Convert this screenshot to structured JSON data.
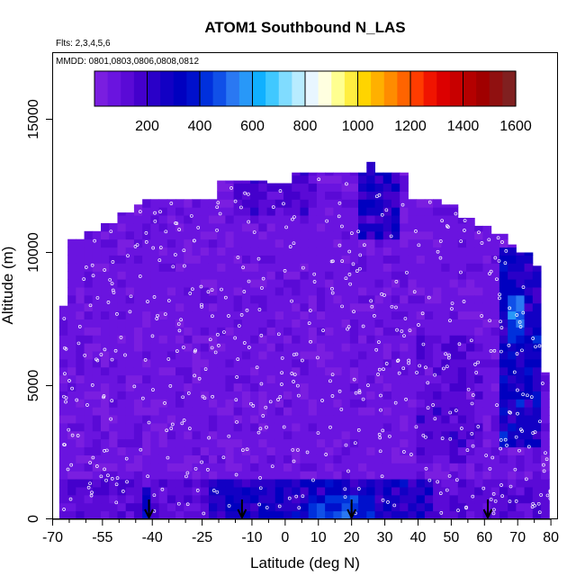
{
  "chart_data": {
    "type": "heatmap",
    "title": "ATOM1 Southbound N_LAS",
    "subtitle_flights": "Flts: 2,3,4,5,6",
    "subtitle_dates": "MMDD: 0801,0803,0806,0808,0812",
    "xlabel": "Latitude (deg N)",
    "ylabel": "Altitude (m)",
    "xlim": [
      -70,
      82
    ],
    "ylim": [
      0,
      17500
    ],
    "x_tick_labels": [
      "-70",
      "-55",
      "-40",
      "-25",
      "-10",
      "0",
      "10",
      "20",
      "30",
      "40",
      "50",
      "60",
      "70",
      "80"
    ],
    "x_tick_values": [
      -70,
      -55,
      -40,
      -25,
      -10,
      0,
      10,
      20,
      30,
      40,
      50,
      60,
      70,
      80
    ],
    "x_minor_ticks": [
      -65,
      -60,
      -50,
      -45,
      -35,
      -30,
      -20,
      -15,
      -5,
      5,
      15,
      25,
      35,
      45,
      55,
      65,
      75
    ],
    "y_tick_labels": [
      "0",
      "5000",
      "10000",
      "15000"
    ],
    "y_tick_values": [
      0,
      5000,
      10000,
      15000
    ],
    "colorbar": {
      "range": [
        0,
        1600
      ],
      "tick_labels": [
        "200",
        "400",
        "600",
        "800",
        "1000",
        "1200",
        "1400",
        "1600"
      ],
      "tick_values": [
        200,
        400,
        600,
        800,
        1000,
        1200,
        1400,
        1600
      ],
      "colors": [
        "#7a1ee0",
        "#6a14df",
        "#5a0ad6",
        "#4400cc",
        "#2a00c8",
        "#1200c4",
        "#0000c0",
        "#0010cc",
        "#0030dc",
        "#1050e8",
        "#2a78f2",
        "#2898f8",
        "#10b0ff",
        "#40c8ff",
        "#80dcff",
        "#b8ecff",
        "#e8f6ff",
        "#ffffe0",
        "#ffff90",
        "#ffee40",
        "#ffd400",
        "#ffb000",
        "#ff8c00",
        "#ff6400",
        "#ff3c00",
        "#f01400",
        "#dc0000",
        "#c80000",
        "#b40000",
        "#a00000",
        "#901010",
        "#802020"
      ]
    },
    "profile_markers_latitude": [
      -41,
      -13,
      20,
      61
    ],
    "grid": "off",
    "legend": "colorbar at top"
  }
}
